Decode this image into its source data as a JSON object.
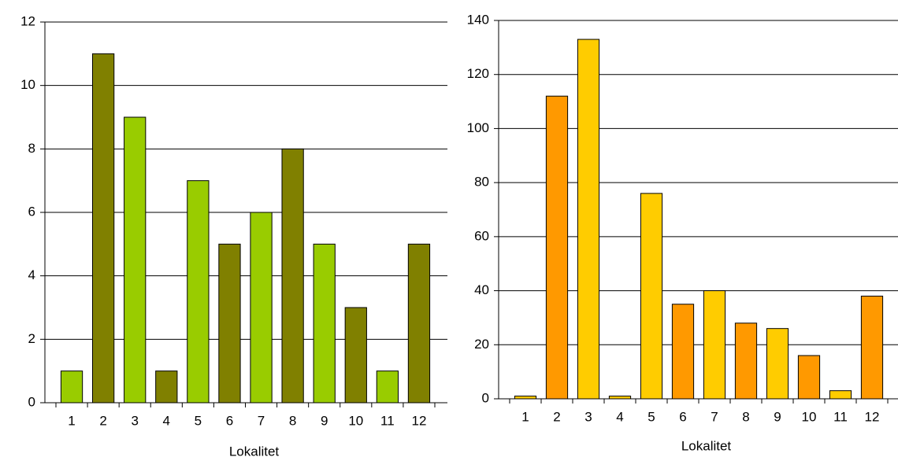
{
  "chart_data": [
    {
      "type": "bar",
      "x_label": "Lokalitet",
      "categories": [
        "1",
        "2",
        "3",
        "4",
        "5",
        "6",
        "7",
        "8",
        "9",
        "10",
        "11",
        "12"
      ],
      "values": [
        1,
        11,
        9,
        1,
        7,
        5,
        6,
        8,
        5,
        3,
        1,
        5
      ],
      "colors": [
        "#99cc00",
        "#808000",
        "#99cc00",
        "#808000",
        "#99cc00",
        "#808000",
        "#99cc00",
        "#808000",
        "#99cc00",
        "#808000",
        "#99cc00",
        "#808000"
      ],
      "ylim": [
        0,
        12
      ],
      "yticks": [
        0,
        2,
        4,
        6,
        8,
        10,
        12
      ],
      "grid": true
    },
    {
      "type": "bar",
      "x_label": "Lokalitet",
      "categories": [
        "1",
        "2",
        "3",
        "4",
        "5",
        "6",
        "7",
        "8",
        "9",
        "10",
        "11",
        "12"
      ],
      "values": [
        1,
        112,
        133,
        1,
        76,
        35,
        40,
        28,
        26,
        16,
        3,
        38
      ],
      "colors": [
        "#ffcc00",
        "#ff9900",
        "#ffcc00",
        "#ffcc00",
        "#ffcc00",
        "#ff9900",
        "#ffcc00",
        "#ff9900",
        "#ffcc00",
        "#ff9900",
        "#ffcc00",
        "#ff9900"
      ],
      "ylim": [
        0,
        140
      ],
      "yticks": [
        0,
        20,
        40,
        60,
        80,
        100,
        120,
        140
      ],
      "grid": true
    }
  ]
}
